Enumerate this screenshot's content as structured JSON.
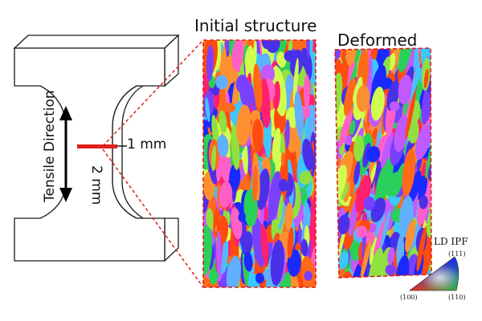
{
  "titles": {
    "initial": "Initial structure",
    "deformed": "Deformed"
  },
  "specimen": {
    "tensile_label": "Tensile Direction",
    "width_label": "1 mm",
    "thickness_label": "2 mm"
  },
  "ipf_legend": {
    "title": "LD IPF",
    "corner_111": "(111)",
    "corner_100": "(100)",
    "corner_110": "(110)"
  },
  "colors": {
    "outline": "#1a1a1a",
    "highlight": "#e0201c",
    "grain_palette": [
      "#ff6a1a",
      "#ff4a10",
      "#ff9030",
      "#1a2aff",
      "#4a30e8",
      "#7a40ff",
      "#c05aff",
      "#ff60c8",
      "#3ac8ff",
      "#2ad05a",
      "#90e040",
      "#d0ff50",
      "#ff2070",
      "#60b0ff"
    ]
  }
}
